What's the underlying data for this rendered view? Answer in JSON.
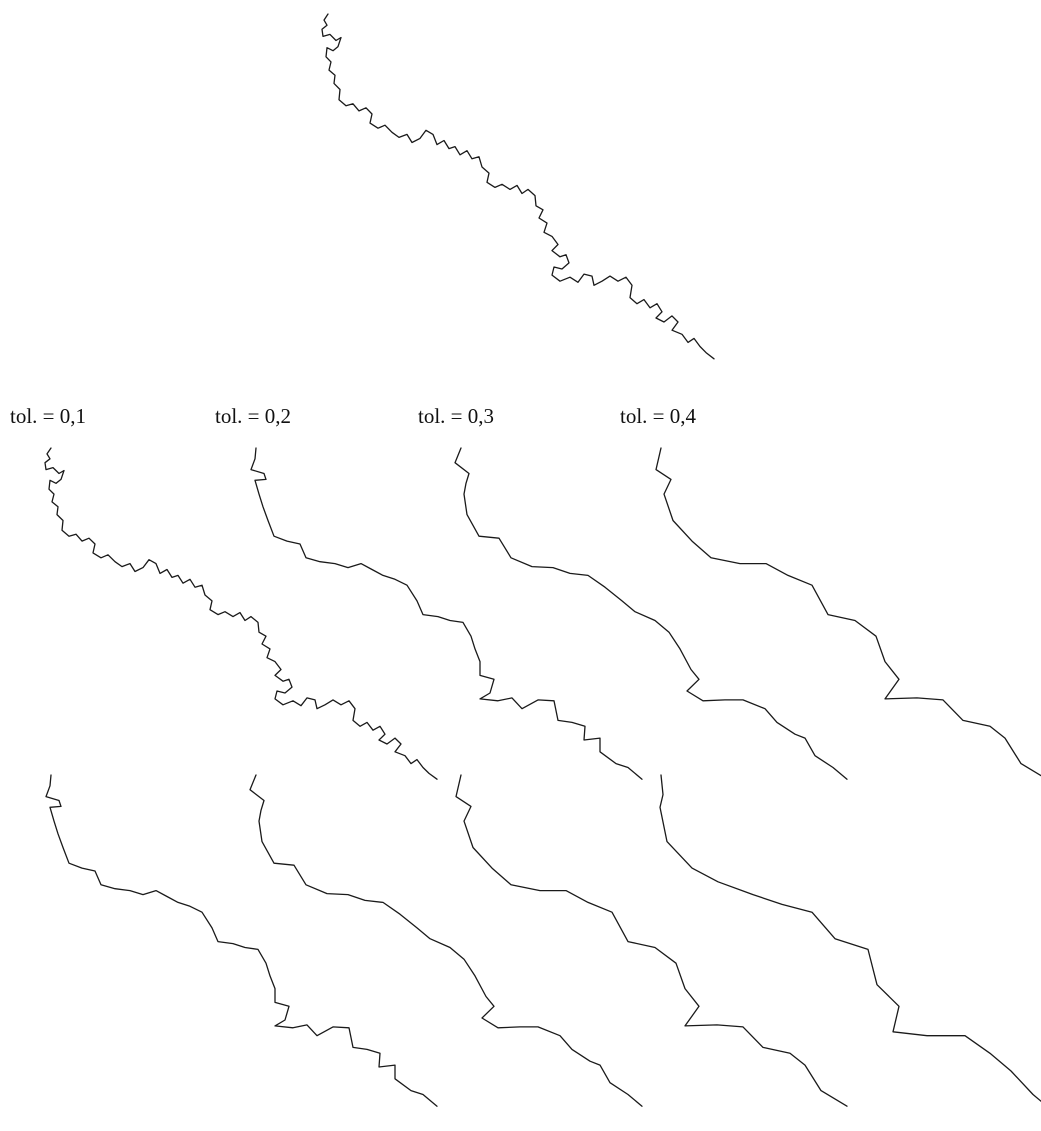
{
  "figure": {
    "labels": [
      "tol. = 0,1",
      "tol. = 0,2",
      "tol. = 0,3",
      "tol. = 0,4"
    ],
    "line_color": "#1a1a1a",
    "background": "#ffffff"
  }
}
